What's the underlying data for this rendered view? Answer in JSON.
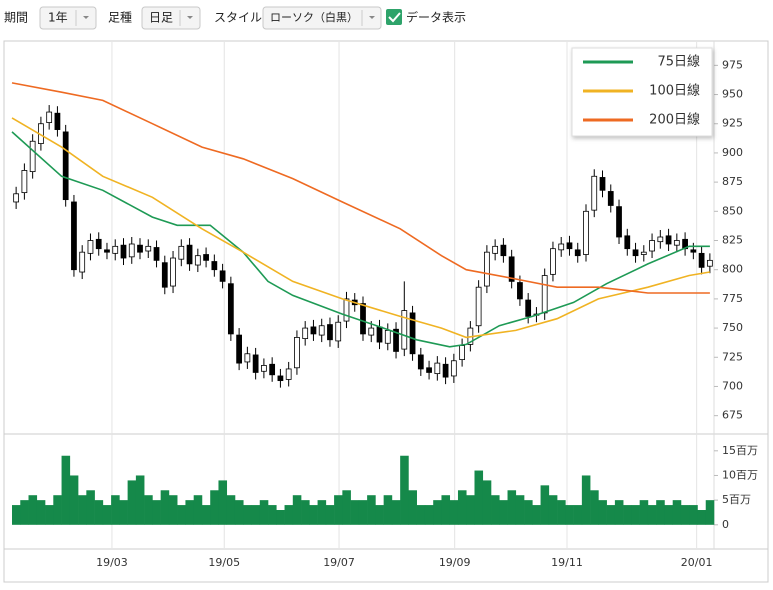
{
  "toolbar": {
    "period_label": "期間",
    "period": "1年",
    "bar_label": "足種",
    "bar": "日足",
    "style_label": "スタイル",
    "style": "ローソク（白黒）",
    "data_toggle": "データ表示"
  },
  "chart_data": [
    {
      "type": "candlestick",
      "up_color": "#ffffff",
      "down_color": "#000000",
      "legend": "upper-right",
      "grid": true,
      "open": [
        858,
        866,
        884,
        908,
        926,
        934,
        918,
        858,
        798,
        814,
        826,
        817,
        814,
        821,
        811,
        821,
        816,
        819,
        806,
        786,
        809,
        821,
        804,
        813,
        807,
        799,
        788,
        744,
        721,
        727,
        713,
        719,
        709,
        706,
        716,
        741,
        751,
        744,
        753,
        739,
        756,
        774,
        771,
        744,
        751,
        737,
        749,
        732,
        763,
        727,
        716,
        711,
        719,
        709,
        723,
        736,
        752,
        786,
        814,
        821,
        811,
        789,
        774,
        761,
        763,
        796,
        817,
        823,
        817,
        813,
        851,
        879,
        867,
        854,
        829,
        817,
        813,
        816,
        824,
        829,
        821,
        826,
        817,
        814,
        803
      ],
      "high": [
        871,
        891,
        916,
        931,
        941,
        940,
        924,
        864,
        821,
        831,
        832,
        823,
        826,
        827,
        828,
        827,
        826,
        825,
        812,
        816,
        826,
        827,
        818,
        819,
        813,
        805,
        794,
        750,
        734,
        733,
        724,
        725,
        715,
        721,
        748,
        756,
        757,
        758,
        759,
        761,
        781,
        780,
        777,
        756,
        757,
        754,
        755,
        790,
        769,
        733,
        722,
        726,
        725,
        728,
        741,
        756,
        791,
        821,
        826,
        827,
        817,
        795,
        780,
        768,
        801,
        824,
        828,
        829,
        823,
        856,
        886,
        885,
        873,
        860,
        835,
        823,
        821,
        831,
        834,
        835,
        831,
        832,
        823,
        820,
        814
      ],
      "low": [
        852,
        860,
        878,
        902,
        920,
        914,
        854,
        794,
        792,
        808,
        812,
        809,
        808,
        804,
        805,
        809,
        810,
        802,
        779,
        780,
        803,
        799,
        798,
        802,
        794,
        784,
        739,
        714,
        715,
        706,
        707,
        704,
        699,
        700,
        710,
        735,
        739,
        738,
        734,
        733,
        750,
        764,
        739,
        738,
        732,
        731,
        724,
        726,
        722,
        709,
        706,
        705,
        702,
        703,
        717,
        730,
        746,
        780,
        808,
        806,
        784,
        769,
        754,
        755,
        757,
        790,
        811,
        812,
        806,
        807,
        845,
        862,
        849,
        822,
        812,
        806,
        807,
        810,
        818,
        816,
        815,
        812,
        809,
        796,
        797
      ],
      "close": [
        865,
        885,
        910,
        925,
        935,
        920,
        860,
        800,
        815,
        825,
        818,
        815,
        820,
        810,
        822,
        815,
        820,
        808,
        785,
        810,
        820,
        805,
        812,
        808,
        800,
        790,
        745,
        720,
        728,
        712,
        718,
        710,
        705,
        715,
        742,
        750,
        745,
        752,
        740,
        755,
        775,
        770,
        745,
        750,
        738,
        748,
        730,
        765,
        728,
        715,
        712,
        720,
        708,
        722,
        735,
        750,
        785,
        815,
        820,
        812,
        790,
        775,
        760,
        762,
        795,
        818,
        822,
        818,
        812,
        850,
        880,
        868,
        855,
        828,
        818,
        812,
        815,
        825,
        828,
        822,
        825,
        818,
        815,
        802,
        808
      ],
      "series": [
        {
          "name": "75日線",
          "color": "#1e9a55",
          "x": [
            0,
            6,
            11,
            17,
            20,
            24,
            28,
            31,
            34,
            40,
            45,
            49,
            53,
            55,
            59,
            63,
            68,
            72,
            77,
            82,
            84.5
          ],
          "values": [
            918,
            880,
            868,
            845,
            838,
            838,
            815,
            790,
            778,
            762,
            750,
            740,
            734,
            736,
            752,
            760,
            772,
            788,
            805,
            820,
            820
          ]
        },
        {
          "name": "100日線",
          "color": "#f0b323",
          "x": [
            0,
            6,
            11,
            17,
            23,
            28,
            34,
            40,
            47,
            52,
            55,
            61,
            66,
            71,
            77,
            82,
            84.5
          ],
          "values": [
            930,
            905,
            880,
            862,
            835,
            815,
            790,
            775,
            760,
            750,
            742,
            748,
            758,
            775,
            785,
            795,
            798
          ]
        },
        {
          "name": "200日線",
          "color": "#ee6a22",
          "x": [
            0,
            6,
            11,
            17,
            23,
            28,
            34,
            40,
            47,
            52,
            55,
            61,
            66,
            71,
            77,
            84.5
          ],
          "values": [
            960,
            952,
            945,
            925,
            905,
            895,
            878,
            858,
            835,
            812,
            800,
            792,
            785,
            785,
            780,
            780
          ]
        }
      ],
      "xlim": [
        0,
        85
      ],
      "xticks": [
        {
          "value": 12.1,
          "label": "19/03"
        },
        {
          "value": 25.7,
          "label": "19/05"
        },
        {
          "value": 39.6,
          "label": "19/07"
        },
        {
          "value": 53.6,
          "label": "19/09"
        },
        {
          "value": 67.2,
          "label": "19/11"
        },
        {
          "value": 82.9,
          "label": "20/01"
        }
      ],
      "ylim": [
        661,
        995
      ],
      "yticks": [
        675,
        700,
        725,
        750,
        775,
        800,
        825,
        850,
        875,
        900,
        925,
        950,
        975
      ]
    },
    {
      "type": "bar",
      "color": "#15894a",
      "xlim": [
        0,
        85
      ],
      "ylim": [
        -4.7,
        18
      ],
      "values": [
        4,
        5,
        6,
        5,
        4,
        6,
        14,
        10,
        6,
        7,
        5,
        4,
        6,
        5,
        9,
        10,
        6,
        5,
        7,
        6,
        4,
        5,
        6,
        4,
        7,
        9,
        6,
        5,
        4,
        4,
        5,
        4,
        3,
        4,
        6,
        5,
        4,
        5,
        4,
        6,
        7,
        5,
        5,
        6,
        4,
        6,
        5,
        14,
        7,
        4,
        4,
        5,
        6,
        5,
        7,
        6,
        11,
        9,
        6,
        5,
        7,
        6,
        5,
        4,
        8,
        6,
        5,
        4,
        4,
        10,
        7,
        5,
        4,
        5,
        4,
        4,
        5,
        4,
        5,
        4,
        5,
        4,
        4,
        3,
        5
      ],
      "yticks": [
        0,
        {
          "value": 5,
          "label": "5百万"
        },
        {
          "value": 10,
          "label": "10百万"
        },
        {
          "value": 15,
          "label": "15百万"
        }
      ]
    }
  ]
}
